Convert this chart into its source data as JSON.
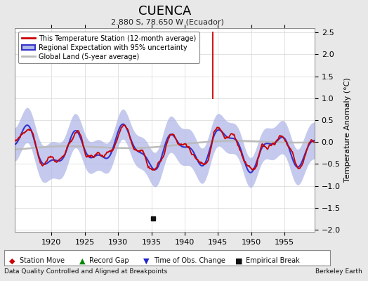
{
  "title": "CUENCA",
  "subtitle": "2.880 S, 78.650 W (Ecuador)",
  "ylabel": "Temperature Anomaly (°C)",
  "xlabel_left": "Data Quality Controlled and Aligned at Breakpoints",
  "xlabel_right": "Berkeley Earth",
  "year_start": 1914.5,
  "year_end": 1959.5,
  "ylim": [
    -2.05,
    2.6
  ],
  "yticks": [
    -2,
    -1.5,
    -1,
    -0.5,
    0,
    0.5,
    1,
    1.5,
    2,
    2.5
  ],
  "xticks": [
    1920,
    1925,
    1930,
    1935,
    1940,
    1945,
    1950,
    1955
  ],
  "colors": {
    "station": "#cc0000",
    "regional": "#3333cc",
    "regional_fill": "#b0b8e8",
    "global": "#bbbbbb",
    "background_fig": "#e8e8e8",
    "background_ax": "#ffffff",
    "grid": "#dddddd"
  },
  "legend_entries": [
    "This Temperature Station (12-month average)",
    "Regional Expectation with 95% uncertainty",
    "Global Land (5-year average)"
  ],
  "empirical_break_x": 1935.3,
  "spike_x": 1944.2,
  "spike_top": 2.5,
  "spike_base": 1.0,
  "seed": 77
}
